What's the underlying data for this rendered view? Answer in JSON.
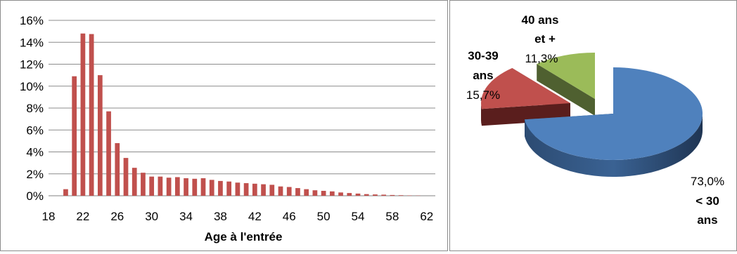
{
  "chart_data": [
    {
      "type": "bar",
      "xlabel": "Age à l'entrée",
      "ylabel": "",
      "ylim": [
        0,
        16
      ],
      "x_ticks": [
        "18",
        "22",
        "26",
        "30",
        "34",
        "38",
        "42",
        "46",
        "50",
        "54",
        "58",
        "62"
      ],
      "y_ticks": [
        "0%",
        "2%",
        "4%",
        "6%",
        "8%",
        "10%",
        "12%",
        "14%",
        "16%"
      ],
      "grid": true,
      "color": "#c0504d",
      "x": [
        19,
        20,
        21,
        22,
        23,
        24,
        25,
        26,
        27,
        28,
        29,
        30,
        31,
        32,
        33,
        34,
        35,
        36,
        37,
        38,
        39,
        40,
        41,
        42,
        43,
        44,
        45,
        46,
        47,
        48,
        49,
        50,
        51,
        52,
        53,
        54,
        55,
        56,
        57,
        58,
        59,
        60,
        61,
        62
      ],
      "values": [
        0.0,
        0.6,
        10.9,
        14.8,
        14.75,
        11.0,
        7.7,
        4.8,
        3.45,
        2.55,
        2.1,
        1.75,
        1.75,
        1.65,
        1.7,
        1.6,
        1.55,
        1.6,
        1.45,
        1.35,
        1.3,
        1.2,
        1.15,
        1.1,
        1.05,
        1.0,
        0.85,
        0.8,
        0.7,
        0.6,
        0.5,
        0.45,
        0.4,
        0.3,
        0.25,
        0.2,
        0.15,
        0.12,
        0.1,
        0.07,
        0.05,
        0.03,
        0.02,
        0.0
      ]
    },
    {
      "type": "pie",
      "slices": [
        {
          "label_top": "< 30",
          "label_bottom": "ans",
          "value": 73.0,
          "value_text": "73,0%",
          "color": "#4f81bd"
        },
        {
          "label_top": "30-39",
          "label_bottom": "ans",
          "value": 15.7,
          "value_text": "15,7%",
          "color": "#c0504d"
        },
        {
          "label_top": "40 ans",
          "label_bottom": "et +",
          "value": 11.3,
          "value_text": "11,3%",
          "color": "#9bbb59"
        }
      ]
    }
  ]
}
